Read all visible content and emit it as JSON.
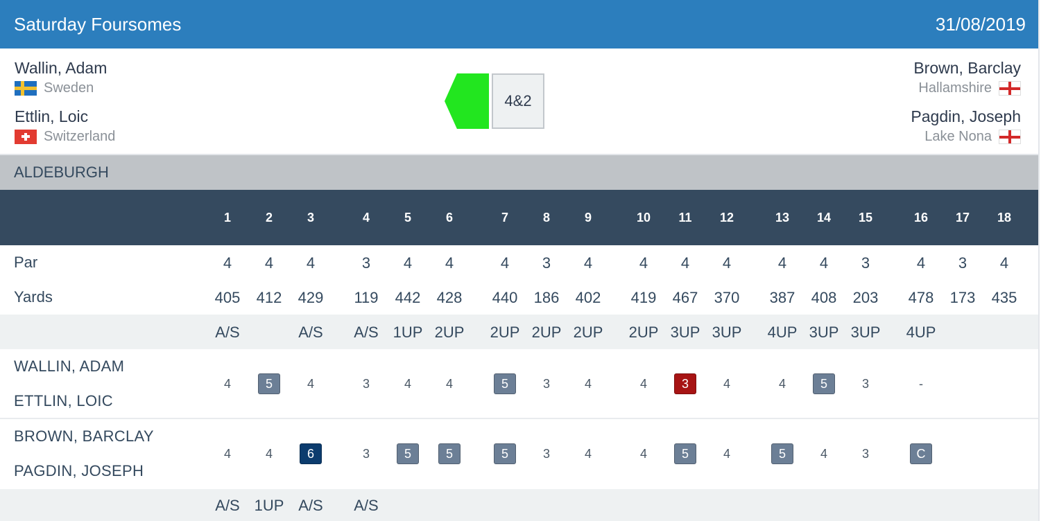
{
  "header": {
    "title": "Saturday Foursomes",
    "date": "31/08/2019"
  },
  "match": {
    "left_players": [
      {
        "name": "Wallin, Adam",
        "club": "Sweden",
        "flag": "flag-sweden-icon"
      },
      {
        "name": "Ettlin, Loic",
        "club": "Switzerland",
        "flag": "flag-switzerland-icon"
      }
    ],
    "right_players": [
      {
        "name": "Brown, Barclay",
        "club": "Hallamshire",
        "flag": "flag-england-icon"
      },
      {
        "name": "Pagdin, Joseph",
        "club": "Lake Nona",
        "flag": "flag-england-icon"
      }
    ],
    "result": "4&2",
    "winner_color": "#22e61f"
  },
  "course": "ALDEBURGH",
  "table": {
    "holes": [
      "1",
      "2",
      "3",
      "4",
      "5",
      "6",
      "7",
      "8",
      "9",
      "10",
      "11",
      "12",
      "13",
      "14",
      "15",
      "16",
      "17",
      "18"
    ],
    "par_label": "Par",
    "yards_label": "Yards",
    "par": [
      "4",
      "4",
      "4",
      "3",
      "4",
      "4",
      "4",
      "3",
      "4",
      "4",
      "4",
      "4",
      "4",
      "4",
      "3",
      "4",
      "3",
      "4"
    ],
    "yards": [
      "405",
      "412",
      "429",
      "119",
      "442",
      "428",
      "440",
      "186",
      "402",
      "419",
      "467",
      "370",
      "387",
      "408",
      "203",
      "478",
      "173",
      "435"
    ],
    "status_top": [
      "A/S",
      "",
      "A/S",
      "A/S",
      "1UP",
      "2UP",
      "2UP",
      "2UP",
      "2UP",
      "2UP",
      "3UP",
      "3UP",
      "4UP",
      "3UP",
      "3UP",
      "4UP",
      "",
      ""
    ],
    "team1": {
      "players": [
        "WALLIN, ADAM",
        "ETTLIN, LOIC"
      ],
      "scores": [
        "4",
        "5",
        "4",
        "3",
        "4",
        "4",
        "5",
        "3",
        "4",
        "4",
        "3",
        "4",
        "4",
        "5",
        "3",
        "-",
        "",
        ""
      ],
      "styles": [
        "",
        "bogey",
        "",
        "",
        "",
        "",
        "bogey",
        "",
        "",
        "",
        "birdie",
        "",
        "",
        "bogey",
        "",
        "",
        "",
        ""
      ]
    },
    "team2": {
      "players": [
        "BROWN, BARCLAY",
        "PAGDIN, JOSEPH"
      ],
      "scores": [
        "4",
        "4",
        "6",
        "3",
        "5",
        "5",
        "5",
        "3",
        "4",
        "4",
        "5",
        "4",
        "5",
        "4",
        "3",
        "C",
        "",
        ""
      ],
      "styles": [
        "",
        "",
        "double",
        "",
        "bogey",
        "bogey",
        "bogey",
        "",
        "",
        "",
        "bogey",
        "",
        "bogey",
        "",
        "",
        "bogey",
        "",
        ""
      ]
    },
    "status_bottom": [
      "A/S",
      "1UP",
      "A/S",
      "A/S",
      "",
      "",
      "",
      "",
      "",
      "",
      "",
      "",
      "",
      "",
      "",
      "",
      "",
      ""
    ]
  },
  "colors": {
    "header": "#2c7ebd",
    "table_head": "#354a5f",
    "bogey": "#6c7f96",
    "double_bogey": "#0c3c6e",
    "birdie": "#a71414"
  }
}
